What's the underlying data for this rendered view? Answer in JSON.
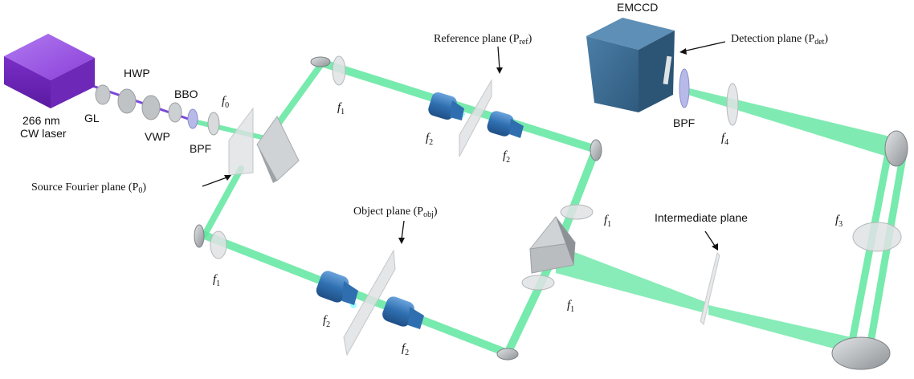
{
  "labels": {
    "laser": [
      "266 nm",
      "CW laser"
    ],
    "gl": "GL",
    "hwp": "HWP",
    "bbo": "BBO",
    "vwp": "VWP",
    "bpf_source": "BPF",
    "emccd": "EMCCD",
    "bpf_detect": "BPF",
    "intermediate_plane": "Intermediate plane",
    "source_fourier_plane": {
      "main": "Source Fourier plane (P",
      "sub": "0",
      "close": ")"
    },
    "reference_plane": {
      "main": "Reference plane (P",
      "sub": "ref",
      "close": ")"
    },
    "detection_plane": {
      "main": "Detection plane (P",
      "sub": "det",
      "close": ")"
    },
    "object_plane": {
      "main": "Object plane (P",
      "sub": "obj",
      "close": ")"
    }
  },
  "focal_labels": [
    {
      "id": "f0",
      "letter": "f",
      "sub": "0"
    },
    {
      "id": "f1a",
      "letter": "f",
      "sub": "1"
    },
    {
      "id": "f1b",
      "letter": "f",
      "sub": "1"
    },
    {
      "id": "f1c",
      "letter": "f",
      "sub": "1"
    },
    {
      "id": "f1d",
      "letter": "f",
      "sub": "1"
    },
    {
      "id": "f2a",
      "letter": "f",
      "sub": "2"
    },
    {
      "id": "f2b",
      "letter": "f",
      "sub": "2"
    },
    {
      "id": "f2c",
      "letter": "f",
      "sub": "2"
    },
    {
      "id": "f2d",
      "letter": "f",
      "sub": "2"
    },
    {
      "id": "f3",
      "letter": "f",
      "sub": "3"
    },
    {
      "id": "f4",
      "letter": "f",
      "sub": "4"
    }
  ],
  "colors": {
    "beam": "#5fe69f",
    "laser_body": "#8a3fd8",
    "uv_beam": "#7b48d9",
    "objective": "#3f7fc0",
    "camera": "#3f6f95",
    "optic_gray": "#c9cdd0",
    "lens_gray": "#d6d9db"
  }
}
